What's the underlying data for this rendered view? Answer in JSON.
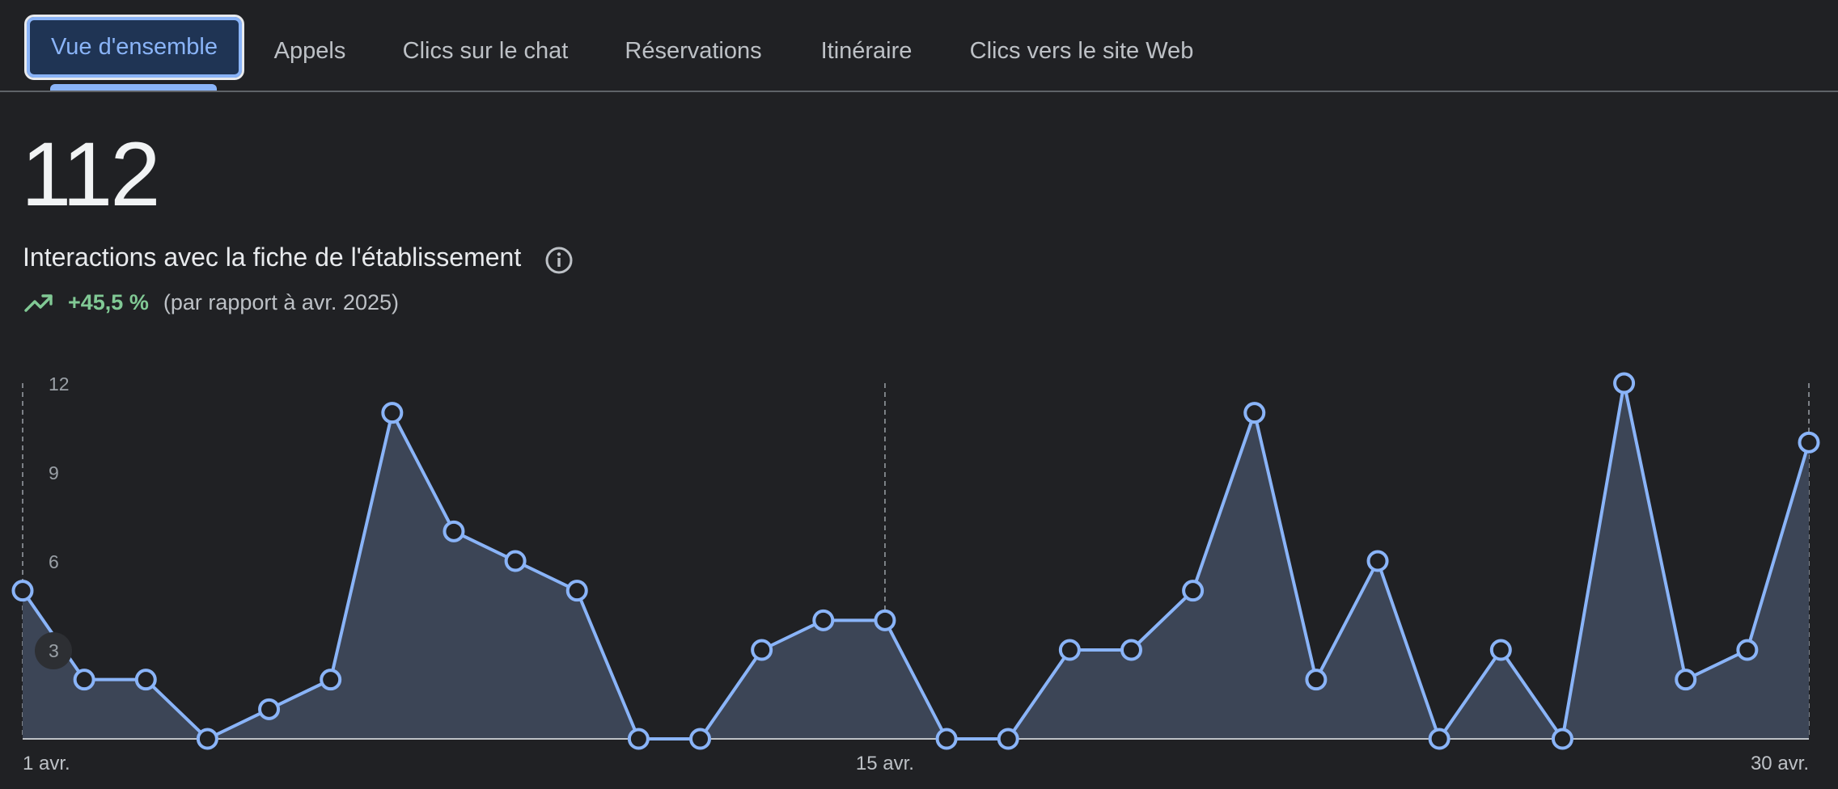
{
  "tabs": [
    {
      "label": "Vue d'ensemble",
      "active": true
    },
    {
      "label": "Appels"
    },
    {
      "label": "Clics sur le chat"
    },
    {
      "label": "Réservations"
    },
    {
      "label": "Itinéraire"
    },
    {
      "label": "Clics vers le site Web"
    }
  ],
  "metric": {
    "value": "112",
    "label": "Interactions avec la fiche de l'établissement",
    "info_icon": "info-icon",
    "trend_icon": "trending-up-icon",
    "change": "+45,5 %",
    "comparison": "(par rapport à avr. 2025)"
  },
  "colors": {
    "background": "#202124",
    "accent": "#8ab4f8",
    "area_fill": "#3c4556",
    "positive": "#81c995"
  },
  "chart_data": {
    "type": "area",
    "x": [
      "1 avr.",
      "2 avr.",
      "3 avr.",
      "4 avr.",
      "5 avr.",
      "6 avr.",
      "7 avr.",
      "8 avr.",
      "9 avr.",
      "10 avr.",
      "11 avr.",
      "12 avr.",
      "13 avr.",
      "14 avr.",
      "15 avr.",
      "16 avr.",
      "17 avr.",
      "18 avr.",
      "19 avr.",
      "20 avr.",
      "21 avr.",
      "22 avr.",
      "23 avr.",
      "24 avr.",
      "25 avr.",
      "26 avr.",
      "27 avr.",
      "28 avr.",
      "29 avr.",
      "30 avr."
    ],
    "values": [
      5,
      2,
      2,
      0,
      1,
      2,
      11,
      7,
      6,
      5,
      0,
      0,
      3,
      4,
      4,
      0,
      0,
      3,
      3,
      5,
      11,
      2,
      6,
      0,
      3,
      0,
      12,
      2,
      3,
      10
    ],
    "y_ticks": [
      "12",
      "9",
      "6",
      "3"
    ],
    "x_tick_labels": [
      "1 avr.",
      "15 avr.",
      "30 avr."
    ],
    "ylim": [
      0,
      12
    ],
    "grid": false
  }
}
